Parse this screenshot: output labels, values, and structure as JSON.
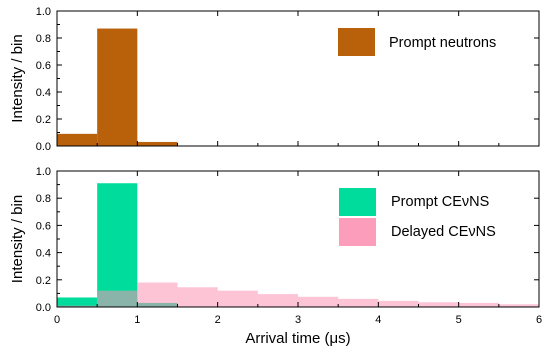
{
  "chart_data": [
    {
      "type": "bar",
      "ylabel": "Intensity / bin",
      "xlim": [
        0,
        6
      ],
      "ylim": [
        0,
        1.0
      ],
      "yticks": [
        "0.0",
        "0.2",
        "0.4",
        "0.6",
        "0.8",
        "1.0"
      ],
      "bin_edges": [
        0,
        0.5,
        1.0,
        1.5,
        2.0,
        2.5,
        3.0,
        3.5,
        4.0,
        4.5,
        5.0,
        5.5,
        6.0
      ],
      "legend_position": "top-right",
      "series": [
        {
          "name": "Prompt neutrons",
          "color": "#b8600a",
          "values": [
            0.09,
            0.87,
            0.03,
            0,
            0,
            0,
            0,
            0,
            0,
            0,
            0,
            0
          ]
        }
      ]
    },
    {
      "type": "bar",
      "xlabel": "Arrival time (μs)",
      "ylabel": "Intensity / bin",
      "xlim": [
        0,
        6
      ],
      "ylim": [
        0,
        1.0
      ],
      "xticks": [
        "0",
        "1",
        "2",
        "3",
        "4",
        "5",
        "6"
      ],
      "yticks": [
        "0.0",
        "0.2",
        "0.4",
        "0.6",
        "0.8",
        "1.0"
      ],
      "bin_edges": [
        0,
        0.5,
        1.0,
        1.5,
        2.0,
        2.5,
        3.0,
        3.5,
        4.0,
        4.5,
        5.0,
        5.5,
        6.0
      ],
      "legend_position": "top-right",
      "series": [
        {
          "name": "Prompt CEνNS",
          "color": "#00dc9c",
          "values": [
            0.07,
            0.91,
            0.03,
            0,
            0,
            0,
            0,
            0,
            0,
            0,
            0,
            0
          ]
        },
        {
          "name": "Delayed CEνNS",
          "color": "#fc94b4",
          "values": [
            0.01,
            0.12,
            0.18,
            0.145,
            0.12,
            0.095,
            0.075,
            0.06,
            0.045,
            0.035,
            0.03,
            0.02
          ]
        }
      ]
    }
  ]
}
